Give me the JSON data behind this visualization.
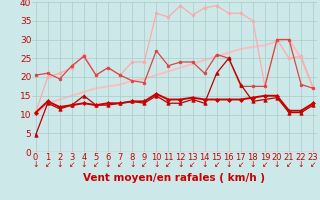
{
  "x": [
    0,
    1,
    2,
    3,
    4,
    5,
    6,
    7,
    8,
    9,
    10,
    11,
    12,
    13,
    14,
    15,
    16,
    17,
    18,
    19,
    20,
    21,
    22,
    23
  ],
  "series": [
    {
      "name": "dark_line1",
      "color": "#bb0000",
      "linewidth": 0.9,
      "marker": "^",
      "markersize": 2.5,
      "zorder": 4,
      "y": [
        4.5,
        13,
        11.5,
        12.5,
        15,
        12.5,
        12.5,
        13,
        13.5,
        13,
        15,
        13,
        13,
        14,
        13,
        21,
        25,
        18,
        13.5,
        14,
        14.5,
        10.5,
        10.5,
        12.5
      ]
    },
    {
      "name": "dark_line2",
      "color": "#cc0000",
      "linewidth": 1.4,
      "marker": "D",
      "markersize": 2.0,
      "zorder": 5,
      "y": [
        10.5,
        13.5,
        12,
        12.5,
        13,
        12.5,
        13,
        13,
        13.5,
        13.5,
        15.5,
        14,
        14,
        14.5,
        14,
        14,
        14,
        14,
        14.5,
        15,
        15,
        11,
        11,
        13
      ]
    },
    {
      "name": "medium_line",
      "color": "#dd4444",
      "linewidth": 0.9,
      "marker": "o",
      "markersize": 2.0,
      "zorder": 3,
      "y": [
        20.5,
        21,
        19.5,
        23,
        25.5,
        20.5,
        22.5,
        20.5,
        19,
        18.5,
        27,
        23,
        24,
        24,
        21,
        26,
        25,
        17.5,
        17.5,
        17.5,
        30,
        30,
        18,
        17
      ]
    },
    {
      "name": "light_line",
      "color": "#ffaaaa",
      "linewidth": 0.9,
      "marker": "o",
      "markersize": 2.0,
      "zorder": 2,
      "y": [
        10.5,
        20,
        21,
        22.5,
        26,
        20.5,
        22.5,
        20.5,
        24,
        24,
        37,
        36,
        39,
        36.5,
        38.5,
        39,
        37,
        37,
        35,
        17.5,
        30,
        25,
        25.5,
        17
      ]
    },
    {
      "name": "smooth_line",
      "color": "#ffbbbb",
      "linewidth": 1.3,
      "marker": null,
      "markersize": 0,
      "zorder": 1,
      "y": [
        10,
        13,
        14,
        15,
        16,
        17,
        17.5,
        18,
        19,
        19.5,
        20.5,
        21.5,
        22.5,
        23.5,
        24.5,
        25.5,
        26.5,
        27.5,
        28,
        28.5,
        29.5,
        30,
        25,
        17
      ]
    }
  ],
  "xlabel": "Vent moyen/en rafales ( km/h )",
  "xlim": [
    -0.3,
    23.3
  ],
  "ylim": [
    0,
    40
  ],
  "yticks": [
    0,
    5,
    10,
    15,
    20,
    25,
    30,
    35,
    40
  ],
  "xticks": [
    0,
    1,
    2,
    3,
    4,
    5,
    6,
    7,
    8,
    9,
    10,
    11,
    12,
    13,
    14,
    15,
    16,
    17,
    18,
    19,
    20,
    21,
    22,
    23
  ],
  "background_color": "#cce8e8",
  "grid_color": "#aacccc",
  "tick_color": "#cc0000",
  "label_color": "#cc0000",
  "xlabel_fontsize": 7.5,
  "tick_fontsize": 6.0,
  "ytick_fontsize": 6.5
}
